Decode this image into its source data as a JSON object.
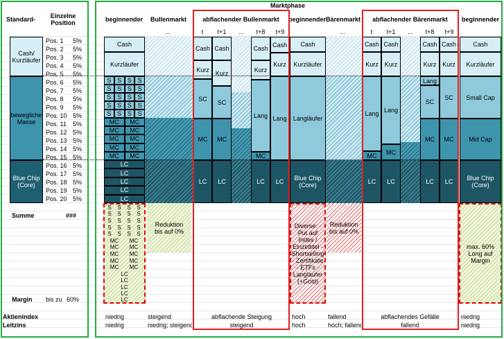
{
  "header": {
    "marktphase": "Marktphase",
    "standard": "Standard-",
    "einzelne": "Einzelne Position",
    "phases": [
      "beginnender",
      "Bullenmarkt",
      "abflachender Bullenmarkt",
      "beginnender",
      "Bärenmarkt",
      "abflachender Bärenmarkt",
      "beginnender"
    ],
    "sub_bull": [
      "...",
      "t",
      "t+1",
      "...",
      "t+8",
      "t+9"
    ],
    "sub_bear": [
      "...",
      "t",
      "t+1",
      "...",
      "t+8",
      "t+9"
    ]
  },
  "left": {
    "groups": [
      "Cash/ Kurzläufer",
      "bewegliche Masse",
      "Blue Chip (Core)"
    ],
    "positions": [
      "Pos. 1",
      "Pos. 2",
      "Pos. 3",
      "Pos. 4",
      "Pos. 5",
      "Pos. 6",
      "Pos. 7",
      "Pos. 8",
      "Pos. 9",
      "Pos. 10",
      "Pos. 11",
      "Pos. 12",
      "Pos. 13",
      "Pos. 14",
      "Pos. 15",
      "Pos. 16",
      "Pos. 17",
      "Pos. 18",
      "Pos. 19",
      "Pos. 20"
    ],
    "pct": "5%",
    "summe": "Summe",
    "summe_val": "###",
    "margin": "Margin",
    "margin_bis": "bis zu",
    "margin_val": "60%",
    "aktienindex": "Aktienindex",
    "leitzins": "Leitzins"
  },
  "cells": {
    "cash": "Cash",
    "kurzlaeufer": "Kurzläufer",
    "kurz": "Kurz",
    "s": "S",
    "mc": "MC",
    "lc": "LC",
    "sc": "SC",
    "lang": "Lang",
    "langlaeufer": "Langläufer",
    "small_cap": "Small Cap",
    "mid_cap": "Mid Cap",
    "blue_chip": "Blue Chip (Core)",
    "reduktion": "Reduktion bis auf 0%",
    "diverse": "Diverse: - Put auf Index / Einzeltitel - Shortselling - Zertifikate - ETFs - Langläufer (+Gold)",
    "max60": "max. 60% Long auf Margin"
  },
  "bottom": {
    "aktienindex": [
      "niedrig",
      "steigend",
      "abflachende Steigung",
      "hoch",
      "fallend",
      "abflachendes Gefälle",
      "niedrig"
    ],
    "leitzins": [
      "niedrig",
      "niedrig; steigend",
      "steigend",
      "hoch",
      "hoch; fallend",
      "fallend",
      "niedrig"
    ]
  },
  "colors": {
    "green_frame": "#22aa44",
    "red_frame": "#e02020",
    "light": "#d6eef6",
    "mid": "#8ecadb",
    "dark": "#1e5f72"
  }
}
